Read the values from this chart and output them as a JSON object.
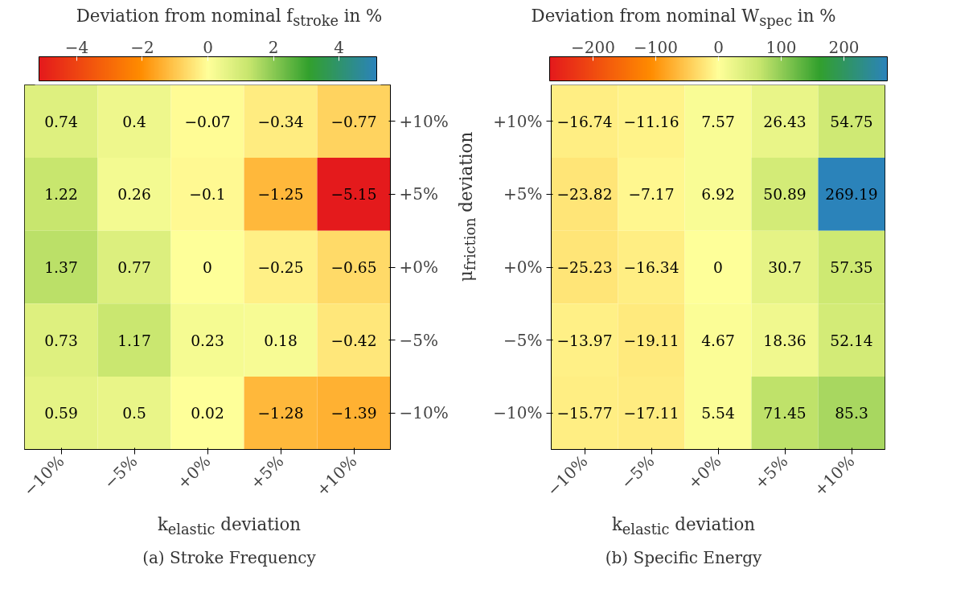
{
  "chart_data": [
    {
      "type": "heatmap",
      "title": "Deviation from nominal f$_{stroke}$ in %",
      "xlabel": "k$_{elastic}$ deviation",
      "annotations": [
        "(a) Stroke Frequency"
      ],
      "categories": [
        "−10%",
        "−5%",
        "+0%",
        "+5%",
        "+10%"
      ],
      "y_categories": [
        "+10%",
        "+5%",
        "+0%",
        "−5%",
        "−10%"
      ],
      "cells": [
        [
          0.74,
          0.4,
          -0.07,
          -0.34,
          -0.77
        ],
        [
          1.22,
          0.26,
          -0.1,
          -1.25,
          -5.15
        ],
        [
          1.37,
          0.77,
          0,
          -0.25,
          -0.65
        ],
        [
          0.73,
          1.17,
          0.23,
          0.18,
          -0.42
        ],
        [
          0.59,
          0.5,
          0.02,
          -1.28,
          -1.39
        ]
      ],
      "clim": [
        -5.15,
        5.15
      ],
      "cticks": [
        {
          "value": -4,
          "label": "−4"
        },
        {
          "value": -2,
          "label": "−2"
        },
        0,
        2,
        4
      ],
      "data_labels": true
    },
    {
      "type": "heatmap",
      "title": "Deviation from nominal W$_{spec}$ in %",
      "xlabel": "k$_{elastic}$ deviation",
      "ylabel": "μ$_{friction}$ deviation",
      "annotations": [
        "(b) Specific Energy"
      ],
      "categories": [
        "−10%",
        "−5%",
        "+0%",
        "+5%",
        "+10%"
      ],
      "y_categories": [
        "+10%",
        "+5%",
        "+0%",
        "−5%",
        "−10%"
      ],
      "cells": [
        [
          -16.74,
          -11.16,
          7.57,
          26.43,
          54.75
        ],
        [
          -23.82,
          -7.17,
          6.92,
          50.89,
          269.19
        ],
        [
          -25.23,
          -16.34,
          0,
          30.7,
          57.35
        ],
        [
          -13.97,
          -19.11,
          4.67,
          18.36,
          52.14
        ],
        [
          -15.77,
          -17.11,
          5.54,
          71.45,
          85.3
        ]
      ],
      "clim": [
        -269.19,
        269.19
      ],
      "cticks": [
        {
          "value": -200,
          "label": "−200"
        },
        {
          "value": -100,
          "label": "−100"
        },
        0,
        100,
        200
      ],
      "data_labels": true
    }
  ]
}
